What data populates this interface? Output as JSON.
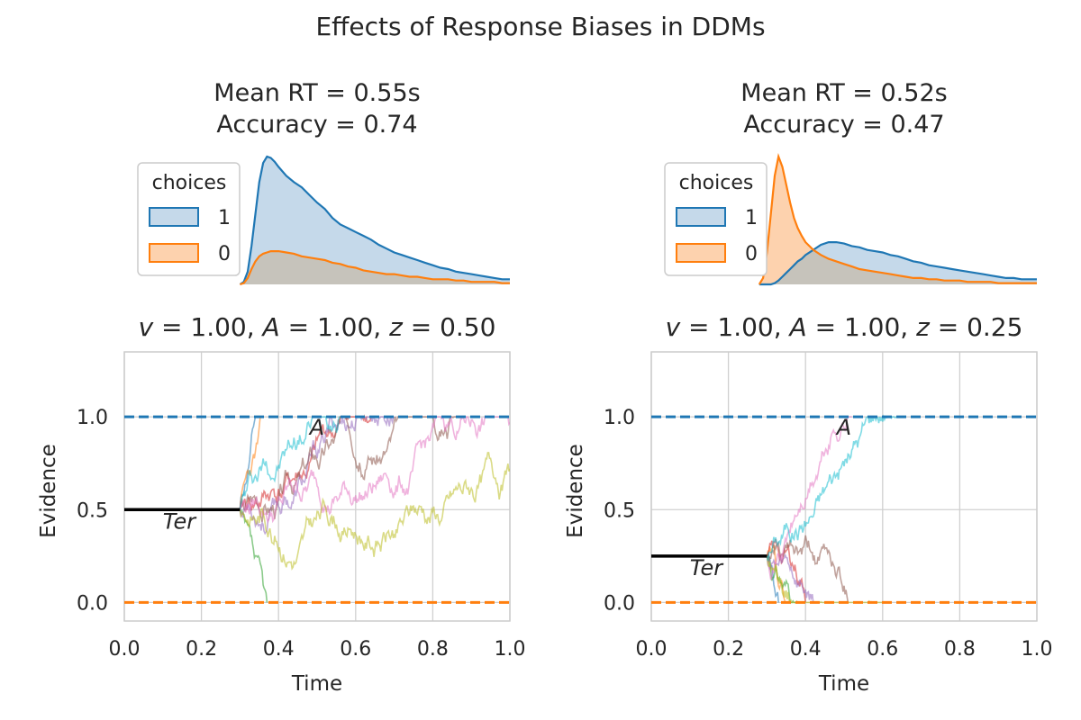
{
  "figure": {
    "title": "Effects of Response Biases in DDMs"
  },
  "colors": {
    "upper": "#1f77b4",
    "lower": "#ff7f0e",
    "upper_fill": "#c5d9ea",
    "lower_fill": "#fdd2ae",
    "overlap_fill": "#c6c3bb",
    "grid": "#d0d0d0",
    "paths": [
      "#1f77b4",
      "#ff7f0e",
      "#2ca02c",
      "#d62728",
      "#9467bd",
      "#8c564b",
      "#e377c2",
      "#bcbd22",
      "#17becf"
    ]
  },
  "chart_data": [
    {
      "type": "area",
      "stats_title": [
        "Mean RT = 0.55s",
        "Accuracy = 0.74"
      ],
      "legend": {
        "title": "choices",
        "entries": [
          "1",
          "0"
        ],
        "placement": "top-left"
      },
      "x": [
        0.3,
        0.31,
        0.32,
        0.33,
        0.34,
        0.35,
        0.36,
        0.37,
        0.38,
        0.39,
        0.4,
        0.42,
        0.44,
        0.46,
        0.48,
        0.5,
        0.52,
        0.54,
        0.56,
        0.58,
        0.6,
        0.62,
        0.64,
        0.66,
        0.68,
        0.7,
        0.72,
        0.74,
        0.76,
        0.78,
        0.8,
        0.82,
        0.84,
        0.86,
        0.88,
        0.9,
        0.92,
        0.94,
        0.96,
        0.98,
        1.0
      ],
      "series": [
        {
          "name": "1",
          "values": [
            0.0,
            0.02,
            0.1,
            0.3,
            0.55,
            0.8,
            0.95,
            1.0,
            0.99,
            0.96,
            0.92,
            0.85,
            0.8,
            0.76,
            0.7,
            0.64,
            0.59,
            0.52,
            0.47,
            0.44,
            0.41,
            0.38,
            0.35,
            0.31,
            0.28,
            0.25,
            0.23,
            0.21,
            0.19,
            0.17,
            0.15,
            0.13,
            0.12,
            0.1,
            0.09,
            0.08,
            0.07,
            0.06,
            0.05,
            0.04,
            0.04
          ]
        },
        {
          "name": "0",
          "values": [
            0.0,
            0.01,
            0.05,
            0.12,
            0.18,
            0.22,
            0.24,
            0.25,
            0.26,
            0.26,
            0.26,
            0.25,
            0.24,
            0.22,
            0.21,
            0.2,
            0.19,
            0.17,
            0.16,
            0.14,
            0.13,
            0.11,
            0.1,
            0.09,
            0.08,
            0.08,
            0.07,
            0.06,
            0.06,
            0.05,
            0.04,
            0.04,
            0.04,
            0.03,
            0.03,
            0.02,
            0.02,
            0.02,
            0.02,
            0.01,
            0.01
          ]
        }
      ]
    },
    {
      "type": "area",
      "stats_title": [
        "Mean RT = 0.52s",
        "Accuracy = 0.47"
      ],
      "legend": {
        "title": "choices",
        "entries": [
          "1",
          "0"
        ],
        "placement": "top-left"
      },
      "x": [
        0.28,
        0.29,
        0.3,
        0.31,
        0.32,
        0.33,
        0.34,
        0.35,
        0.36,
        0.37,
        0.38,
        0.39,
        0.4,
        0.42,
        0.44,
        0.46,
        0.48,
        0.5,
        0.52,
        0.54,
        0.56,
        0.58,
        0.6,
        0.62,
        0.64,
        0.66,
        0.68,
        0.7,
        0.72,
        0.74,
        0.76,
        0.78,
        0.8,
        0.82,
        0.84,
        0.86,
        0.88,
        0.9,
        0.92,
        0.94,
        0.96,
        0.98,
        1.0
      ],
      "series": [
        {
          "name": "1",
          "values": [
            0.0,
            0.0,
            0.0,
            0.0,
            0.01,
            0.03,
            0.06,
            0.09,
            0.12,
            0.15,
            0.18,
            0.2,
            0.23,
            0.27,
            0.31,
            0.33,
            0.33,
            0.32,
            0.3,
            0.29,
            0.27,
            0.26,
            0.25,
            0.23,
            0.22,
            0.2,
            0.18,
            0.17,
            0.15,
            0.14,
            0.13,
            0.12,
            0.11,
            0.1,
            0.09,
            0.08,
            0.07,
            0.06,
            0.05,
            0.05,
            0.04,
            0.04,
            0.04
          ]
        },
        {
          "name": "0",
          "values": [
            0.0,
            0.05,
            0.25,
            0.55,
            0.85,
            1.0,
            0.92,
            0.78,
            0.64,
            0.52,
            0.44,
            0.38,
            0.33,
            0.27,
            0.23,
            0.2,
            0.18,
            0.16,
            0.14,
            0.12,
            0.11,
            0.1,
            0.09,
            0.08,
            0.07,
            0.06,
            0.05,
            0.05,
            0.04,
            0.04,
            0.03,
            0.03,
            0.03,
            0.02,
            0.02,
            0.02,
            0.02,
            0.01,
            0.01,
            0.01,
            0.01,
            0.01,
            0.01
          ]
        }
      ]
    },
    {
      "type": "line",
      "title": "v = 1.00, A = 1.00, z = 0.50",
      "title_parts": [
        {
          "t": "v",
          "i": true
        },
        {
          "t": " = 1.00, ",
          "i": false
        },
        {
          "t": "A",
          "i": true
        },
        {
          "t": " = 1.00, ",
          "i": false
        },
        {
          "t": "z",
          "i": true
        },
        {
          "t": " = 0.50",
          "i": false
        }
      ],
      "xlabel": "Time",
      "ylabel": "Evidence",
      "xlim": [
        0,
        1
      ],
      "ylim": [
        -0.1,
        1.35
      ],
      "xticks": [
        "0.0",
        "0.2",
        "0.4",
        "0.6",
        "0.8",
        "1.0"
      ],
      "yticks": [
        "0.0",
        "0.5",
        "1.0"
      ],
      "grid": true,
      "upper_bound": 1.0,
      "lower_bound": 0.0,
      "start_point": 0.5,
      "ter": 0.3,
      "annotations": {
        "ter": "Ter",
        "bound": "A"
      },
      "paths": [
        {
          "end": 0.34,
          "bound": 1,
          "seed": 11
        },
        {
          "end": 0.355,
          "bound": 1,
          "seed": 23
        },
        {
          "end": 0.37,
          "bound": 0,
          "seed": 37
        },
        {
          "end": 0.64,
          "bound": 1,
          "seed": 41
        },
        {
          "end": 0.7,
          "bound": 1,
          "seed": 53
        },
        {
          "end": 0.86,
          "bound": 1,
          "seed": 67
        },
        {
          "end": 1.0,
          "bound": null,
          "final": 0.97,
          "seed": 79
        },
        {
          "end": 1.0,
          "bound": null,
          "final": 0.72,
          "seed": 83
        },
        {
          "end": 0.56,
          "bound": 1,
          "seed": 97
        }
      ]
    },
    {
      "type": "line",
      "title": "v = 1.00, A = 1.00, z = 0.25",
      "title_parts": [
        {
          "t": "v",
          "i": true
        },
        {
          "t": " = 1.00, ",
          "i": false
        },
        {
          "t": "A",
          "i": true
        },
        {
          "t": " = 1.00, ",
          "i": false
        },
        {
          "t": "z",
          "i": true
        },
        {
          "t": " = 0.25",
          "i": false
        }
      ],
      "xlabel": "Time",
      "ylabel": "Evidence",
      "xlim": [
        0,
        1
      ],
      "ylim": [
        -0.1,
        1.35
      ],
      "xticks": [
        "0.0",
        "0.2",
        "0.4",
        "0.6",
        "0.8",
        "1.0"
      ],
      "yticks": [
        "0.0",
        "0.5",
        "1.0"
      ],
      "grid": true,
      "upper_bound": 1.0,
      "lower_bound": 0.0,
      "start_point": 0.25,
      "ter": 0.3,
      "annotations": {
        "ter": "Ter",
        "bound": "A"
      },
      "paths": [
        {
          "end": 0.33,
          "bound": 0,
          "seed": 13
        },
        {
          "end": 0.35,
          "bound": 0,
          "seed": 29
        },
        {
          "end": 0.38,
          "bound": 0,
          "seed": 31
        },
        {
          "end": 0.4,
          "bound": 0,
          "seed": 43
        },
        {
          "end": 0.42,
          "bound": 0,
          "seed": 59
        },
        {
          "end": 0.51,
          "bound": 0,
          "seed": 61
        },
        {
          "end": 0.52,
          "bound": 1,
          "seed": 71
        },
        {
          "end": 0.6,
          "bound": 0,
          "seed": 89
        },
        {
          "end": 0.635,
          "bound": 1,
          "seed": 101
        }
      ]
    }
  ]
}
